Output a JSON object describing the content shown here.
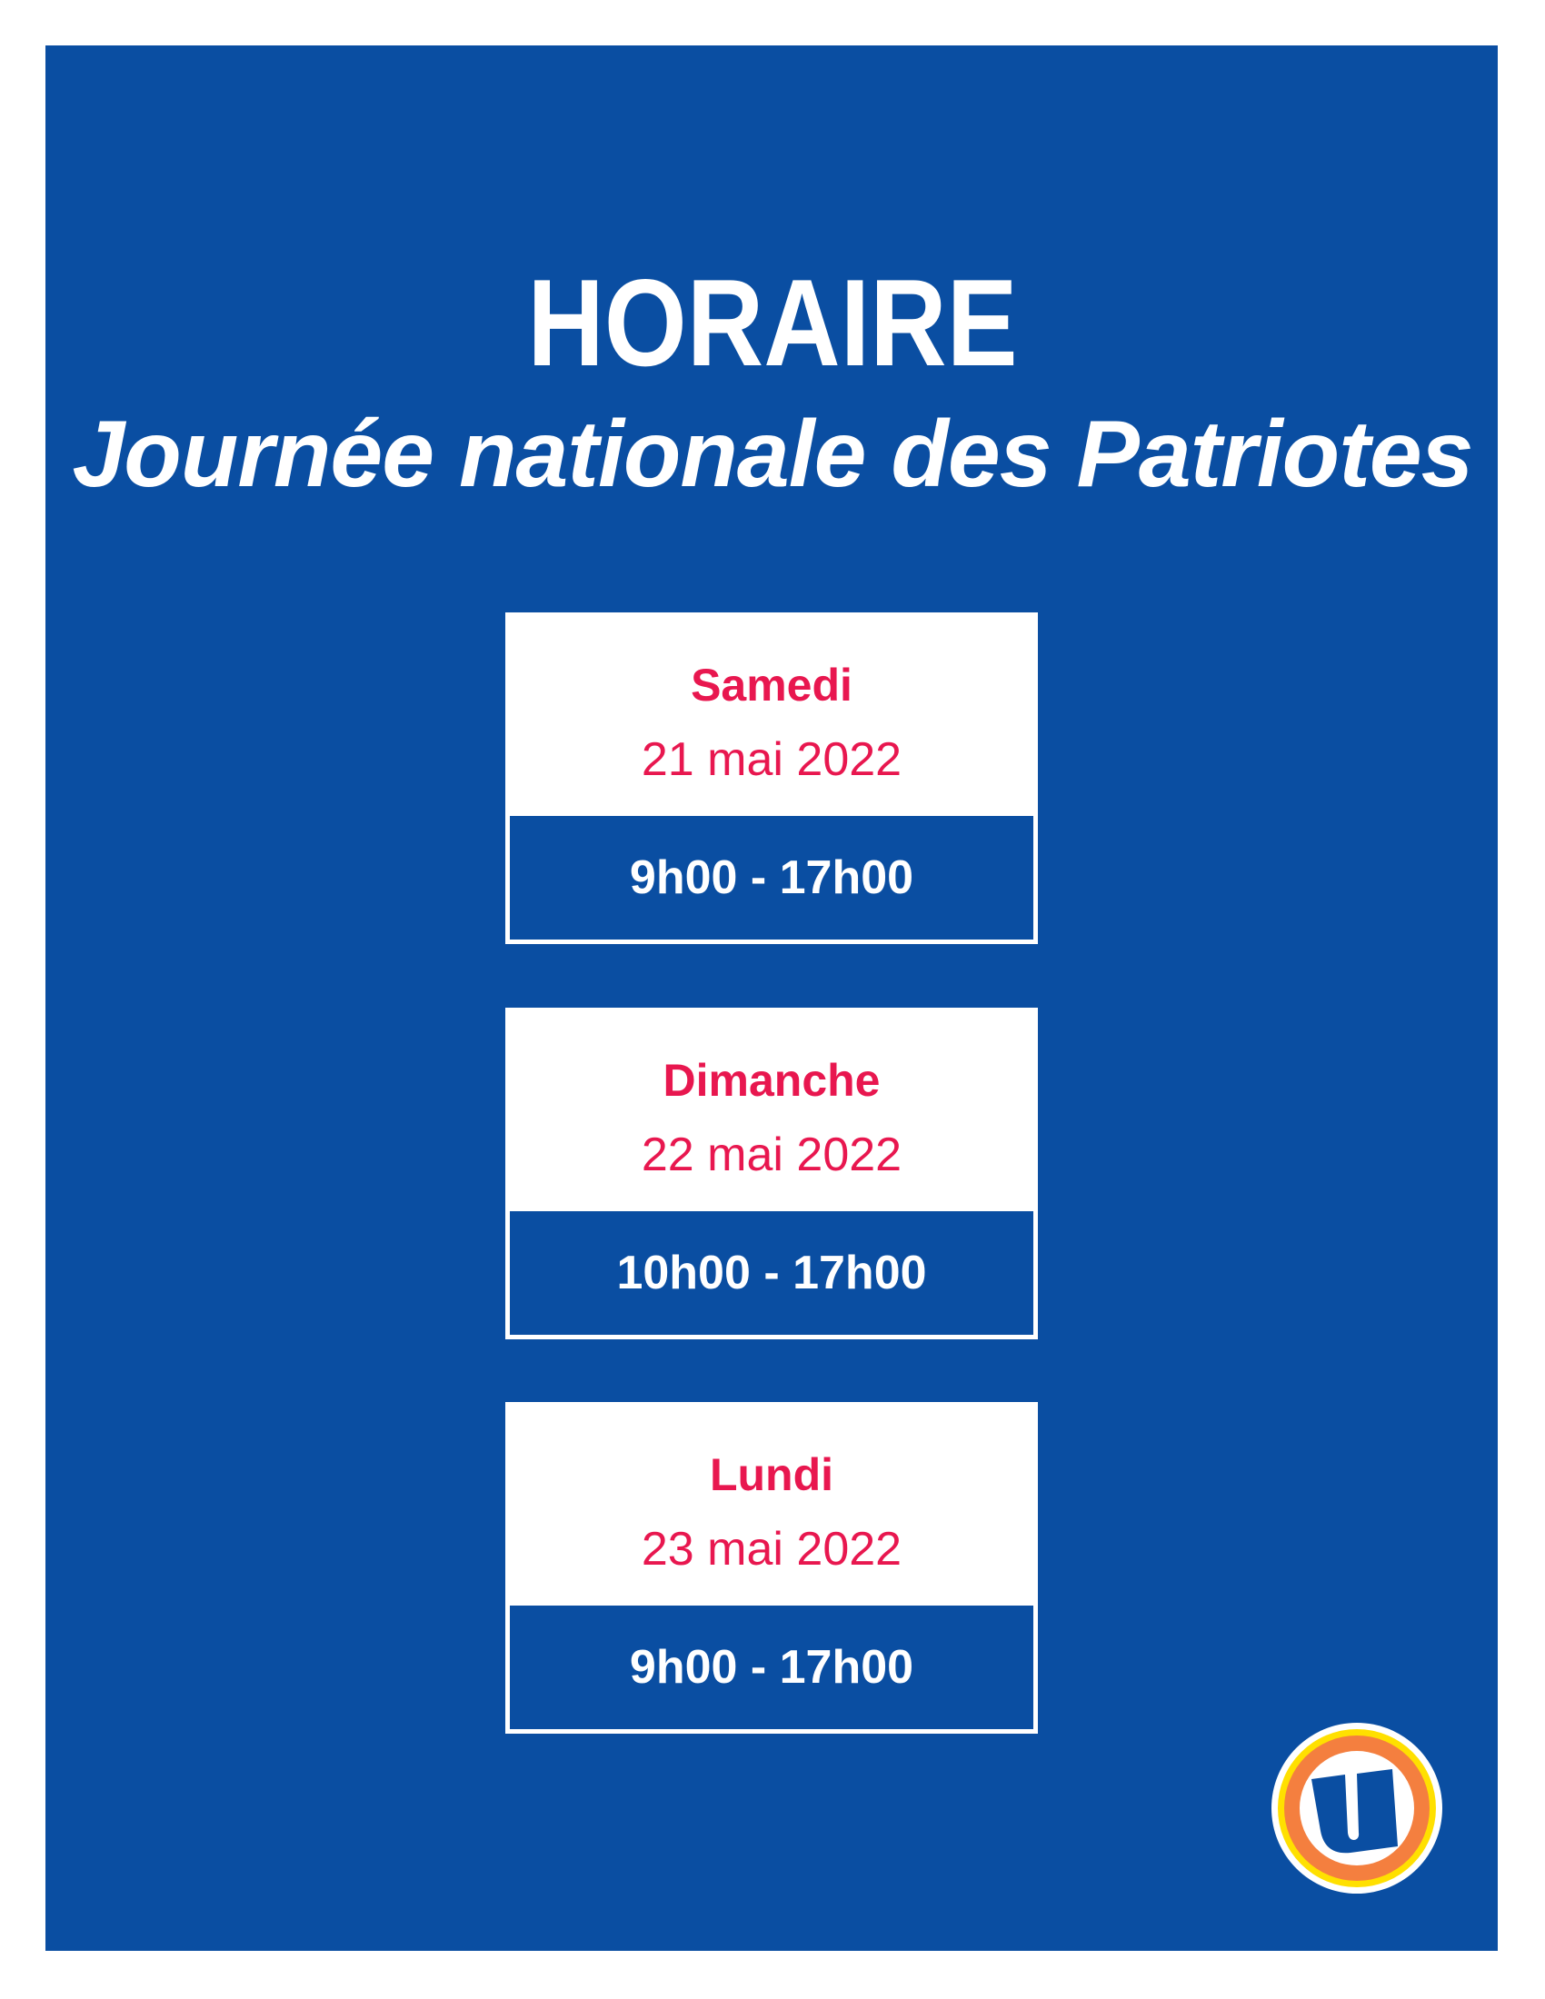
{
  "header": {
    "title": "HORAIRE",
    "subtitle": "Journée nationale des Patriotes"
  },
  "schedule": [
    {
      "day": "Samedi",
      "date": "21 mai 2022",
      "hours": "9h00 - 17h00"
    },
    {
      "day": "Dimanche",
      "date": "22 mai 2022",
      "hours": "10h00 - 17h00"
    },
    {
      "day": "Lundi",
      "date": "23 mai 2022",
      "hours": "9h00 - 17h00"
    }
  ],
  "logo": {
    "letter": "U",
    "icon": "u-circle-logo"
  },
  "colors": {
    "background": "#0a4ea2",
    "accent": "#e8174f",
    "logo_orange": "#f47f3f",
    "logo_yellow": "#ffe000"
  }
}
